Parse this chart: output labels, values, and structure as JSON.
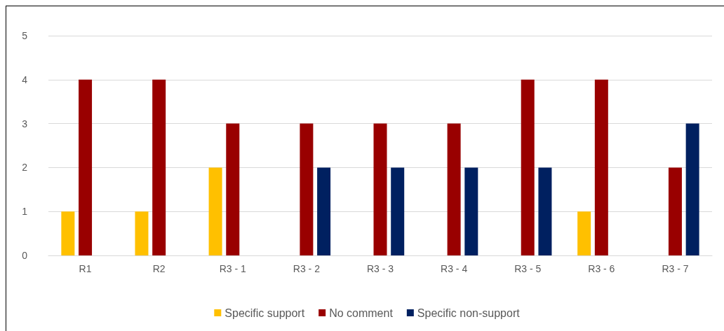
{
  "chart_data": {
    "type": "bar",
    "categories": [
      "R1",
      "R2",
      "R3 - 1",
      "R3 - 2",
      "R3 - 3",
      "R3 - 4",
      "R3 - 5",
      "R3 - 6",
      "R3 - 7"
    ],
    "series": [
      {
        "name": "Specific support",
        "color": "#ffc000",
        "values": [
          1,
          1,
          2,
          0,
          0,
          0,
          0,
          1,
          0
        ]
      },
      {
        "name": "No comment",
        "color": "#990000",
        "values": [
          4,
          4,
          3,
          3,
          3,
          3,
          4,
          4,
          2
        ]
      },
      {
        "name": "Specific non-support",
        "color": "#002060",
        "values": [
          0,
          0,
          0,
          2,
          2,
          2,
          2,
          0,
          3
        ]
      }
    ],
    "ylim": [
      0,
      5
    ],
    "yticks": [
      0,
      1,
      2,
      3,
      4,
      5
    ],
    "grid": "y",
    "legend": "bottom"
  }
}
